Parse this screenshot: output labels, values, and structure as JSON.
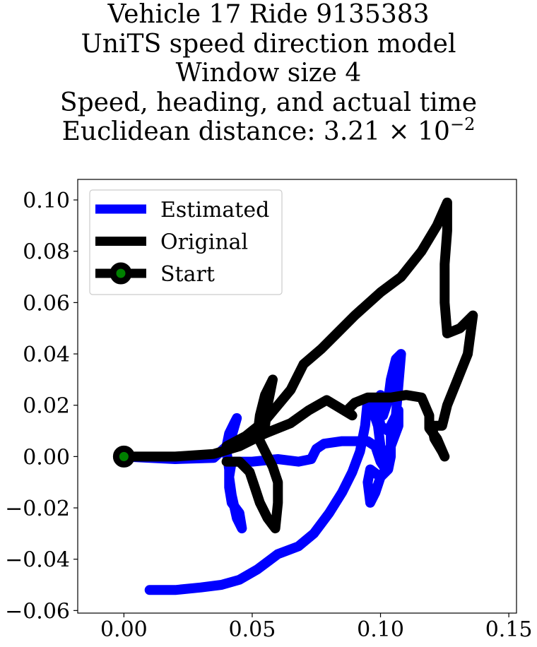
{
  "chart_data": {
    "type": "line",
    "title_lines": [
      "Vehicle 17 Ride 9135383",
      "UniTS speed direction model",
      "Window size 4",
      "Speed, heading, and actual time"
    ],
    "title_metric_prefix": "Euclidean distance: 3.21 × 10",
    "title_metric_exponent": "−2",
    "xlabel": "",
    "ylabel": "",
    "xlim": [
      -0.018,
      0.153
    ],
    "ylim": [
      -0.061,
      0.108
    ],
    "x_ticks": [
      0.0,
      0.05,
      0.1,
      0.15
    ],
    "x_tick_labels": [
      "0.00",
      "0.05",
      "0.10",
      "0.15"
    ],
    "y_ticks": [
      0.1,
      0.08,
      0.06,
      0.04,
      0.02,
      0.0,
      -0.02,
      -0.04,
      -0.06
    ],
    "y_tick_labels": [
      "0.10",
      "0.08",
      "0.06",
      "0.04",
      "0.02",
      "0.00",
      "−0.02",
      "−0.04",
      "−0.06"
    ],
    "grid": false,
    "legend_position": "top-left",
    "series": [
      {
        "name": "Estimated",
        "color": "#0000ff",
        "points": [
          [
            0.0,
            0.0
          ],
          [
            0.02,
            -0.001
          ],
          [
            0.035,
            -0.0005
          ],
          [
            0.04,
            0.004
          ],
          [
            0.041,
            0.009
          ],
          [
            0.043,
            0.013
          ],
          [
            0.044,
            0.015
          ],
          [
            0.042,
            0.008
          ],
          [
            0.04,
            0.002
          ],
          [
            0.041,
            -0.005
          ],
          [
            0.041,
            -0.012
          ],
          [
            0.042,
            -0.018
          ],
          [
            0.045,
            -0.022
          ],
          [
            0.046,
            -0.028
          ],
          [
            0.044,
            -0.024
          ],
          [
            0.042,
            -0.015
          ],
          [
            0.041,
            -0.008
          ],
          [
            0.042,
            -0.002
          ],
          [
            0.05,
            -0.002
          ],
          [
            0.06,
            -0.001
          ],
          [
            0.068,
            -0.002
          ],
          [
            0.073,
            -0.001
          ],
          [
            0.075,
            0.003
          ],
          [
            0.078,
            0.005
          ],
          [
            0.085,
            0.006
          ],
          [
            0.095,
            0.006
          ],
          [
            0.098,
            0.004
          ],
          [
            0.1,
            -0.002
          ],
          [
            0.102,
            -0.005
          ],
          [
            0.1,
            -0.008
          ],
          [
            0.096,
            -0.005
          ],
          [
            0.095,
            -0.01
          ],
          [
            0.096,
            -0.018
          ],
          [
            0.098,
            -0.014
          ],
          [
            0.1,
            -0.008
          ],
          [
            0.103,
            -0.005
          ],
          [
            0.104,
            0.0
          ],
          [
            0.104,
            0.008
          ],
          [
            0.106,
            0.016
          ],
          [
            0.107,
            0.028
          ],
          [
            0.108,
            0.04
          ],
          [
            0.106,
            0.038
          ],
          [
            0.104,
            0.03
          ],
          [
            0.103,
            0.022
          ],
          [
            0.101,
            0.016
          ],
          [
            0.1,
            0.024
          ],
          [
            0.099,
            0.018
          ],
          [
            0.1,
            0.012
          ],
          [
            0.103,
            0.01
          ],
          [
            0.105,
            0.014
          ],
          [
            0.107,
            0.018
          ],
          [
            0.107,
            0.012
          ],
          [
            0.104,
            0.004
          ],
          [
            0.101,
            -0.002
          ],
          [
            0.1,
            0.004
          ],
          [
            0.099,
            0.012
          ],
          [
            0.097,
            0.018
          ],
          [
            0.095,
            0.022
          ],
          [
            0.094,
            0.012
          ],
          [
            0.092,
            0.002
          ],
          [
            0.089,
            -0.006
          ],
          [
            0.085,
            -0.014
          ],
          [
            0.08,
            -0.022
          ],
          [
            0.074,
            -0.03
          ],
          [
            0.068,
            -0.035
          ],
          [
            0.06,
            -0.038
          ],
          [
            0.052,
            -0.044
          ],
          [
            0.045,
            -0.048
          ],
          [
            0.038,
            -0.05
          ],
          [
            0.03,
            -0.051
          ],
          [
            0.02,
            -0.052
          ],
          [
            0.01,
            -0.052
          ]
        ]
      },
      {
        "name": "Original",
        "color": "#000000",
        "points": [
          [
            0.0,
            0.0
          ],
          [
            0.02,
            0.0
          ],
          [
            0.035,
            0.001
          ],
          [
            0.045,
            0.004
          ],
          [
            0.055,
            0.009
          ],
          [
            0.065,
            0.013
          ],
          [
            0.072,
            0.018
          ],
          [
            0.079,
            0.022
          ],
          [
            0.089,
            0.016
          ],
          [
            0.087,
            0.018
          ],
          [
            0.09,
            0.021
          ],
          [
            0.095,
            0.023
          ],
          [
            0.104,
            0.023
          ],
          [
            0.11,
            0.024
          ],
          [
            0.116,
            0.023
          ],
          [
            0.119,
            0.016
          ],
          [
            0.119,
            0.011
          ],
          [
            0.122,
            0.007
          ],
          [
            0.125,
            0.0
          ],
          [
            0.124,
            0.002
          ],
          [
            0.121,
            0.007
          ],
          [
            0.12,
            0.012
          ],
          [
            0.124,
            0.012
          ],
          [
            0.126,
            0.02
          ],
          [
            0.13,
            0.03
          ],
          [
            0.134,
            0.04
          ],
          [
            0.136,
            0.055
          ],
          [
            0.131,
            0.05
          ],
          [
            0.126,
            0.048
          ],
          [
            0.125,
            0.06
          ],
          [
            0.125,
            0.075
          ],
          [
            0.126,
            0.088
          ],
          [
            0.126,
            0.099
          ],
          [
            0.122,
            0.09
          ],
          [
            0.116,
            0.08
          ],
          [
            0.108,
            0.07
          ],
          [
            0.1,
            0.064
          ],
          [
            0.09,
            0.055
          ],
          [
            0.083,
            0.048
          ],
          [
            0.077,
            0.042
          ],
          [
            0.07,
            0.036
          ],
          [
            0.065,
            0.026
          ],
          [
            0.06,
            0.02
          ],
          [
            0.055,
            0.014
          ],
          [
            0.05,
            0.01
          ],
          [
            0.045,
            0.006
          ],
          [
            0.04,
            0.004
          ],
          [
            0.055,
            0.012
          ],
          [
            0.056,
            0.02
          ],
          [
            0.058,
            0.03
          ],
          [
            0.055,
            0.024
          ],
          [
            0.053,
            0.016
          ],
          [
            0.052,
            0.008
          ],
          [
            0.055,
            0.002
          ],
          [
            0.058,
            -0.004
          ],
          [
            0.06,
            -0.01
          ],
          [
            0.06,
            -0.018
          ],
          [
            0.059,
            -0.028
          ],
          [
            0.056,
            -0.024
          ],
          [
            0.053,
            -0.018
          ],
          [
            0.051,
            -0.012
          ],
          [
            0.049,
            -0.006
          ],
          [
            0.045,
            -0.002
          ],
          [
            0.04,
            -0.002
          ]
        ]
      }
    ],
    "start_marker": {
      "name": "Start",
      "point": [
        0.0,
        0.0
      ],
      "edge_color": "#000000",
      "face_color": "#008000"
    }
  }
}
